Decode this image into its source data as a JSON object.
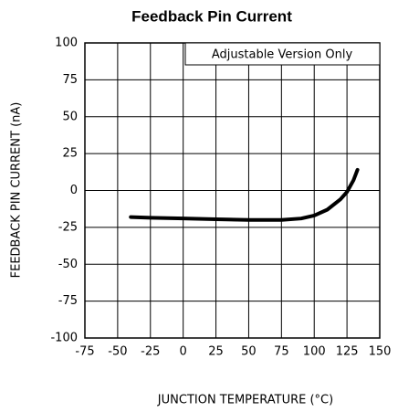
{
  "chart_data": {
    "type": "line",
    "title": "Feedback Pin Current",
    "xlabel": "JUNCTION TEMPERATURE (°C)",
    "ylabel": "FEEDBACK PIN CURRENT (nA)",
    "annotation": "Adjustable Version Only",
    "x": [
      -40,
      -25,
      0,
      25,
      50,
      75,
      90,
      100,
      110,
      120,
      125,
      130,
      133
    ],
    "values": [
      -18,
      -18.5,
      -19,
      -19.5,
      -20,
      -20,
      -19,
      -17,
      -13,
      -6,
      -1,
      7,
      14
    ],
    "color": "#000000",
    "xlim": [
      -75,
      150
    ],
    "xticks": [
      -75,
      -50,
      -25,
      0,
      25,
      50,
      75,
      100,
      125,
      150
    ],
    "ylim": [
      -100,
      100
    ],
    "yticks": [
      -100,
      -75,
      -50,
      -25,
      0,
      25,
      50,
      75,
      100
    ],
    "grid": true
  }
}
